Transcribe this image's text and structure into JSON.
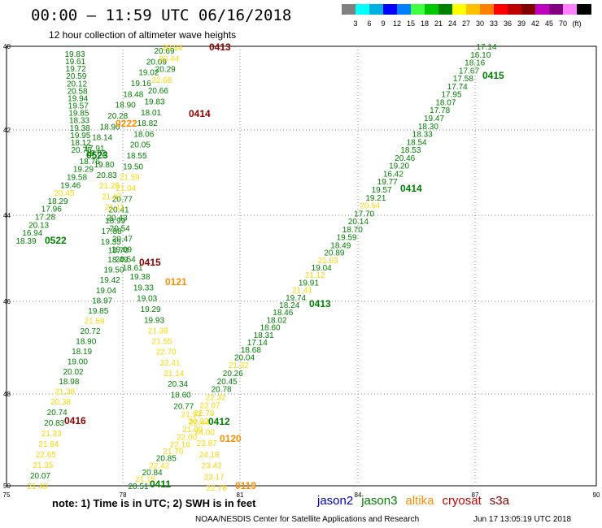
{
  "header": {
    "title": "00:00 – 11:59 UTC 06/16/2018",
    "subtitle": "12 hour collection of altimeter wave heights"
  },
  "color_scale": {
    "colors": [
      "#808080",
      "#00ffff",
      "#00b0e0",
      "#0000ff",
      "#0080ff",
      "#40ff40",
      "#00c800",
      "#008000",
      "#ffff00",
      "#ffc000",
      "#ff8000",
      "#ff0000",
      "#c00000",
      "#800000",
      "#c000c0",
      "#800080",
      "#ff80ff",
      "#000000"
    ],
    "labels": [
      "3",
      "6",
      "9",
      "12",
      "15",
      "18",
      "21",
      "24",
      "27",
      "30",
      "33",
      "36",
      "39",
      "42",
      "45",
      "70",
      "(ft)"
    ]
  },
  "axes": {
    "x_ticks": [
      "75",
      "78",
      "81",
      "84",
      "87",
      "90"
    ],
    "y_ticks": [
      "40",
      "42",
      "44",
      "46",
      "48",
      "50"
    ]
  },
  "note": "note: 1) Time is in UTC; 2) SWH is in feet",
  "legend": [
    {
      "name": "jason2",
      "color": "#0000cc"
    },
    {
      "name": "jason3",
      "color": "#008000"
    },
    {
      "name": "altika",
      "color": "#ff8c00"
    },
    {
      "name": "cryosat",
      "color": "#cc0000"
    },
    {
      "name": "s3a",
      "color": "#8b0000"
    }
  ],
  "credit": "NOAA/NESDIS Center for Satellite Applications and Research",
  "generated": "Jun 17 13:05:19 UTC 2018",
  "tracks": [
    {
      "id": "t1",
      "labels": [
        {
          "v": "19.83",
          "c": "#008000"
        },
        {
          "v": "19.61",
          "c": "#008000"
        },
        {
          "v": "19.72",
          "c": "#008000"
        },
        {
          "v": "20.59",
          "c": "#008000"
        },
        {
          "v": "20.12",
          "c": "#008000"
        },
        {
          "v": "20.58",
          "c": "#008000"
        },
        {
          "v": "19.94",
          "c": "#008000"
        },
        {
          "v": "19.57",
          "c": "#008000"
        },
        {
          "v": "19.85",
          "c": "#008000"
        },
        {
          "v": "18.33",
          "c": "#008000"
        },
        {
          "v": "19.38",
          "c": "#008000"
        },
        {
          "v": "19.95",
          "c": "#008000"
        },
        {
          "v": "18.12",
          "c": "#008000"
        },
        {
          "v": "20.75",
          "c": "#008000"
        }
      ]
    },
    {
      "id": "t2",
      "labels": [
        {
          "v": "20.69",
          "c": "#008000"
        },
        {
          "v": "20.09",
          "c": "#008000"
        },
        {
          "v": "19.02",
          "c": "#008000"
        },
        {
          "v": "19.16",
          "c": "#008000"
        },
        {
          "v": "18.48",
          "c": "#008000"
        },
        {
          "v": "18.90",
          "c": "#008000"
        },
        {
          "v": "20.28",
          "c": "#008000"
        },
        {
          "v": "18.90",
          "c": "#008000"
        },
        {
          "v": "18.14",
          "c": "#008000"
        },
        {
          "v": "17.91",
          "c": "#008000"
        }
      ]
    },
    {
      "id": "t3",
      "labels": [
        {
          "v": "20.94",
          "c": "#ffd800"
        },
        {
          "v": "20.44",
          "c": "#ffd800"
        },
        {
          "v": "20.29",
          "c": "#008000"
        },
        {
          "v": "22.68",
          "c": "#ffd800"
        },
        {
          "v": "20.66",
          "c": "#008000"
        },
        {
          "v": "19.83",
          "c": "#008000"
        },
        {
          "v": "18.01",
          "c": "#008000"
        },
        {
          "v": "18.82",
          "c": "#008000"
        },
        {
          "v": "18.06",
          "c": "#008000"
        },
        {
          "v": "20.05",
          "c": "#008000"
        },
        {
          "v": "18.55",
          "c": "#008000"
        },
        {
          "v": "19.50",
          "c": "#008000"
        },
        {
          "v": "21.59",
          "c": "#ffd800"
        },
        {
          "v": "21.04",
          "c": "#ffd800"
        },
        {
          "v": "20.77",
          "c": "#008000"
        },
        {
          "v": "20.41",
          "c": "#008000"
        },
        {
          "v": "18.99",
          "c": "#008000"
        },
        {
          "v": "17.88",
          "c": "#008000"
        },
        {
          "v": "19.35",
          "c": "#008000"
        },
        {
          "v": "18.70",
          "c": "#008000"
        },
        {
          "v": "20.54",
          "c": "#008000"
        },
        {
          "v": "18.61",
          "c": "#008000"
        },
        {
          "v": "19.38",
          "c": "#008000"
        },
        {
          "v": "19.33",
          "c": "#008000"
        },
        {
          "v": "19.03",
          "c": "#008000"
        },
        {
          "v": "19.29",
          "c": "#008000"
        },
        {
          "v": "19.93",
          "c": "#008000"
        },
        {
          "v": "21.39",
          "c": "#ffd800"
        },
        {
          "v": "21.55",
          "c": "#ffd800"
        },
        {
          "v": "22.70",
          "c": "#ffd800"
        },
        {
          "v": "22.41",
          "c": "#ffd800"
        },
        {
          "v": "21.14",
          "c": "#ffd800"
        },
        {
          "v": "20.34",
          "c": "#008000"
        },
        {
          "v": "18.60",
          "c": "#008000"
        },
        {
          "v": "20.77",
          "c": "#008000"
        },
        {
          "v": "21.97",
          "c": "#ffd800"
        },
        {
          "v": "22.44",
          "c": "#ffd800"
        },
        {
          "v": "24.00",
          "c": "#ffd800"
        },
        {
          "v": "23.87",
          "c": "#ffd800"
        },
        {
          "v": "24.18",
          "c": "#ffd800"
        },
        {
          "v": "23.42",
          "c": "#ffd800"
        },
        {
          "v": "23.17",
          "c": "#ffd800"
        },
        {
          "v": "22.78",
          "c": "#ffd800"
        }
      ]
    },
    {
      "id": "t4",
      "labels": [
        {
          "v": "19.62",
          "c": "#008000"
        },
        {
          "v": "18.76",
          "c": "#008000"
        },
        {
          "v": "19.29",
          "c": "#008000"
        },
        {
          "v": "19.58",
          "c": "#008000"
        },
        {
          "v": "19.46",
          "c": "#008000"
        },
        {
          "v": "20.45",
          "c": "#ffd800"
        },
        {
          "v": "18.29",
          "c": "#008000"
        },
        {
          "v": "17.96",
          "c": "#008000"
        },
        {
          "v": "17.28",
          "c": "#008000"
        },
        {
          "v": "20.13",
          "c": "#008000"
        },
        {
          "v": "16.94",
          "c": "#008000"
        },
        {
          "v": "18.39",
          "c": "#008000"
        }
      ]
    },
    {
      "id": "t5",
      "labels": [
        {
          "v": "19.80",
          "c": "#008000"
        },
        {
          "v": "20.83",
          "c": "#008000"
        },
        {
          "v": "21.29",
          "c": "#ffd800"
        },
        {
          "v": "21.07",
          "c": "#ffd800"
        },
        {
          "v": "21.11",
          "c": "#ffd800"
        },
        {
          "v": "20.43",
          "c": "#008000"
        },
        {
          "v": "20.54",
          "c": "#008000"
        },
        {
          "v": "20.47",
          "c": "#008000"
        },
        {
          "v": "19.09",
          "c": "#008000"
        },
        {
          "v": "18.49",
          "c": "#008000"
        },
        {
          "v": "19.50",
          "c": "#008000"
        },
        {
          "v": "19.42",
          "c": "#008000"
        },
        {
          "v": "19.04",
          "c": "#008000"
        },
        {
          "v": "18.97",
          "c": "#008000"
        },
        {
          "v": "19.85",
          "c": "#008000"
        },
        {
          "v": "21.59",
          "c": "#ffd800"
        },
        {
          "v": "20.72",
          "c": "#008000"
        },
        {
          "v": "18.90",
          "c": "#008000"
        },
        {
          "v": "18.19",
          "c": "#008000"
        },
        {
          "v": "19.00",
          "c": "#008000"
        },
        {
          "v": "20.02",
          "c": "#008000"
        },
        {
          "v": "18.98",
          "c": "#008000"
        },
        {
          "v": "21.38",
          "c": "#ffd800"
        },
        {
          "v": "20.38",
          "c": "#ffd800"
        },
        {
          "v": "20.74",
          "c": "#008000"
        },
        {
          "v": "20.83",
          "c": "#008000"
        },
        {
          "v": "21.33",
          "c": "#ffd800"
        },
        {
          "v": "21.84",
          "c": "#ffd800"
        },
        {
          "v": "22.65",
          "c": "#ffd800"
        },
        {
          "v": "21.35",
          "c": "#ffd800"
        },
        {
          "v": "20.07",
          "c": "#008000"
        },
        {
          "v": "21.40",
          "c": "#ffd800"
        }
      ]
    },
    {
      "id": "t6",
      "labels": [
        {
          "v": "17.14",
          "c": "#008000"
        },
        {
          "v": "16.10",
          "c": "#008000"
        },
        {
          "v": "18.16",
          "c": "#008000"
        },
        {
          "v": "17.67",
          "c": "#008000"
        },
        {
          "v": "17.58",
          "c": "#008000"
        },
        {
          "v": "17.74",
          "c": "#008000"
        },
        {
          "v": "17.95",
          "c": "#008000"
        },
        {
          "v": "18.07",
          "c": "#008000"
        },
        {
          "v": "17.78",
          "c": "#008000"
        },
        {
          "v": "19.47",
          "c": "#008000"
        },
        {
          "v": "18.30",
          "c": "#008000"
        },
        {
          "v": "18.33",
          "c": "#008000"
        },
        {
          "v": "18.54",
          "c": "#008000"
        },
        {
          "v": "18.53",
          "c": "#008000"
        },
        {
          "v": "20.46",
          "c": "#008000"
        },
        {
          "v": "19.20",
          "c": "#008000"
        },
        {
          "v": "16.42",
          "c": "#008000"
        },
        {
          "v": "19.77",
          "c": "#008000"
        },
        {
          "v": "19.57",
          "c": "#008000"
        },
        {
          "v": "19.21",
          "c": "#008000"
        },
        {
          "v": "20.54",
          "c": "#ffd800"
        },
        {
          "v": "17.70",
          "c": "#008000"
        },
        {
          "v": "20.14",
          "c": "#008000"
        },
        {
          "v": "18.70",
          "c": "#008000"
        },
        {
          "v": "19.59",
          "c": "#008000"
        },
        {
          "v": "18.49",
          "c": "#008000"
        },
        {
          "v": "20.89",
          "c": "#008000"
        },
        {
          "v": "21.63",
          "c": "#ffd800"
        },
        {
          "v": "19.04",
          "c": "#008000"
        },
        {
          "v": "21.12",
          "c": "#ffd800"
        },
        {
          "v": "19.91",
          "c": "#008000"
        },
        {
          "v": "21.41",
          "c": "#ffd800"
        },
        {
          "v": "19.74",
          "c": "#008000"
        },
        {
          "v": "18.24",
          "c": "#008000"
        },
        {
          "v": "18.46",
          "c": "#008000"
        },
        {
          "v": "18.02",
          "c": "#008000"
        },
        {
          "v": "18.60",
          "c": "#008000"
        },
        {
          "v": "18.31",
          "c": "#008000"
        },
        {
          "v": "17.14",
          "c": "#008000"
        },
        {
          "v": "18.68",
          "c": "#008000"
        },
        {
          "v": "20.04",
          "c": "#008000"
        },
        {
          "v": "21.32",
          "c": "#ffd800"
        },
        {
          "v": "20.26",
          "c": "#008000"
        },
        {
          "v": "20.45",
          "c": "#008000"
        },
        {
          "v": "20.78",
          "c": "#008000"
        },
        {
          "v": "22.32",
          "c": "#ffd800"
        },
        {
          "v": "22.07",
          "c": "#ffd800"
        },
        {
          "v": "22.78",
          "c": "#ffd800"
        },
        {
          "v": "20.92",
          "c": "#ffd800"
        },
        {
          "v": "21.09",
          "c": "#ffd800"
        },
        {
          "v": "22.00",
          "c": "#ffd800"
        },
        {
          "v": "22.16",
          "c": "#ffd800"
        },
        {
          "v": "21.70",
          "c": "#ffd800"
        },
        {
          "v": "20.85",
          "c": "#008000"
        },
        {
          "v": "22.42",
          "c": "#ffd800"
        },
        {
          "v": "20.84",
          "c": "#008000"
        },
        {
          "v": "21.15",
          "c": "#ffd800"
        },
        {
          "v": "20.51",
          "c": "#008000"
        }
      ]
    }
  ],
  "pass_labels": [
    {
      "v": "0413",
      "c": "#8b0000"
    },
    {
      "v": "0414",
      "c": "#8b0000"
    },
    {
      "v": "0222",
      "c": "#ff8c00"
    },
    {
      "v": "0523",
      "c": "#008000"
    },
    {
      "v": "0522",
      "c": "#008000"
    },
    {
      "v": "0415",
      "c": "#8b0000"
    },
    {
      "v": "0121",
      "c": "#ff8c00"
    },
    {
      "v": "0416",
      "c": "#8b0000"
    },
    {
      "v": "0412",
      "c": "#008000"
    },
    {
      "v": "0120",
      "c": "#ff8c00"
    },
    {
      "v": "0411",
      "c": "#008000"
    },
    {
      "v": "0119",
      "c": "#ff8c00"
    },
    {
      "v": "0415",
      "c": "#008000"
    },
    {
      "v": "0414",
      "c": "#008000"
    },
    {
      "v": "0413",
      "c": "#008000"
    }
  ]
}
